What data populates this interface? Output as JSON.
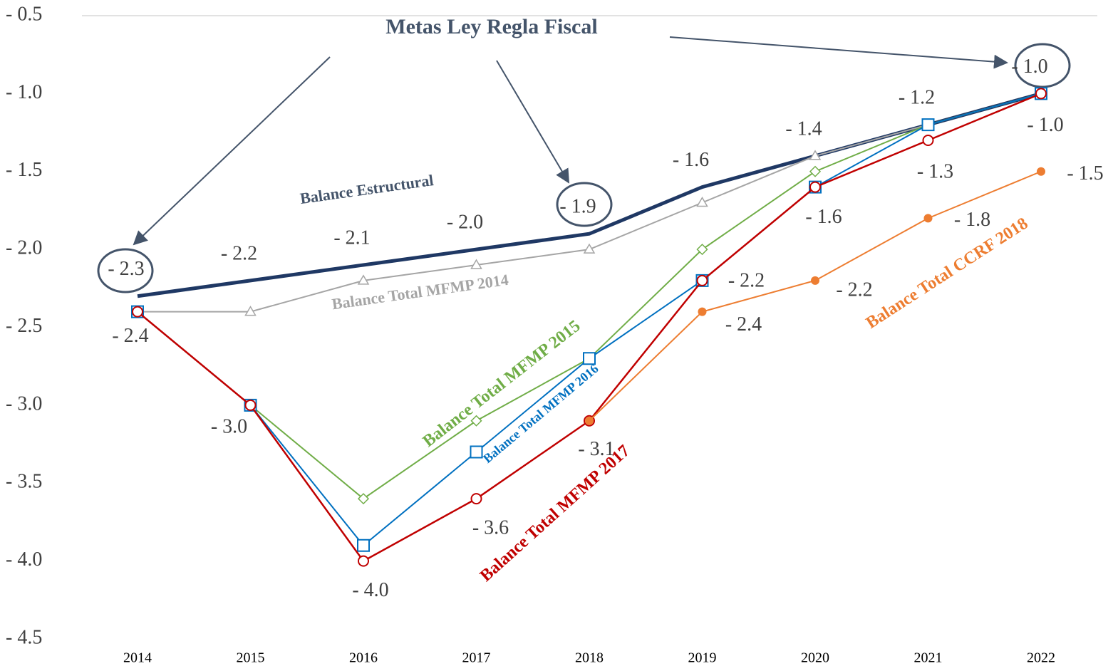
{
  "chart_data": {
    "type": "line",
    "annotation": "Metas Ley Regla Fiscal",
    "categories": [
      "2014",
      "2015",
      "2016",
      "2017",
      "2018",
      "2019",
      "2020",
      "2021",
      "2022"
    ],
    "ylim": [
      -4.5,
      -0.5
    ],
    "yticks": [
      {
        "value": -0.5,
        "label": "- 0.5"
      },
      {
        "value": -1.0,
        "label": "- 1.0"
      },
      {
        "value": -1.5,
        "label": "- 1.5"
      },
      {
        "value": -2.0,
        "label": "- 2.0"
      },
      {
        "value": -2.5,
        "label": "- 2.5"
      },
      {
        "value": -3.0,
        "label": "- 3.0"
      },
      {
        "value": -3.5,
        "label": "- 3.5"
      },
      {
        "value": -4.0,
        "label": "- 4.0"
      },
      {
        "value": -4.5,
        "label": "- 4.5"
      }
    ],
    "grid": false,
    "series": [
      {
        "name": "Balance Estructural",
        "color": "#1f3864",
        "marker": "none",
        "values": [
          -2.3,
          -2.2,
          -2.1,
          -2.0,
          -1.9,
          -1.6,
          -1.4,
          -1.2,
          -1.0
        ],
        "value_labels": [
          "- 2.3",
          "- 2.2",
          "- 2.1",
          "- 2.0",
          "- 1.9",
          "- 1.6",
          "- 1.4",
          "- 1.2",
          "- 1.0"
        ]
      },
      {
        "name": "Balance Total MFMP 2014",
        "color": "#a5a5a5",
        "marker": "triangle",
        "values": [
          -2.4,
          -2.4,
          -2.2,
          -2.1,
          -2.0,
          -1.7,
          -1.4,
          -1.2,
          -1.0
        ]
      },
      {
        "name": "Balance Total MFMP 2015",
        "color": "#70ad47",
        "marker": "diamond",
        "values": [
          -2.4,
          -3.0,
          -3.6,
          -3.1,
          -2.7,
          -2.0,
          -1.5,
          -1.2,
          -1.0
        ]
      },
      {
        "name": "Balance Total MFMP 2016",
        "color": "#0070c0",
        "marker": "square",
        "values": [
          -2.4,
          -3.0,
          -3.9,
          -3.3,
          -2.7,
          -2.2,
          -1.6,
          -1.2,
          -1.0
        ]
      },
      {
        "name": "Balance Total MFMP 2017",
        "color": "#c00000",
        "marker": "circle",
        "values": [
          -2.4,
          -3.0,
          -4.0,
          -3.6,
          -3.1,
          -2.2,
          -1.6,
          -1.3,
          -1.0
        ],
        "value_labels": [
          "- 2.4",
          "- 3.0",
          "- 4.0",
          "- 3.6",
          "- 3.1",
          "- 2.2",
          "- 1.6",
          "- 1.3",
          "- 1.0"
        ]
      },
      {
        "name": "Balance Total CCRF 2018",
        "color": "#ed7d31",
        "marker": "dot",
        "values": [
          null,
          null,
          null,
          null,
          -3.1,
          -2.4,
          -2.2,
          -1.8,
          -1.5
        ],
        "value_labels": [
          null,
          null,
          null,
          null,
          null,
          "- 2.4",
          "- 2.2",
          "- 1.8",
          "- 1.5"
        ]
      }
    ]
  }
}
